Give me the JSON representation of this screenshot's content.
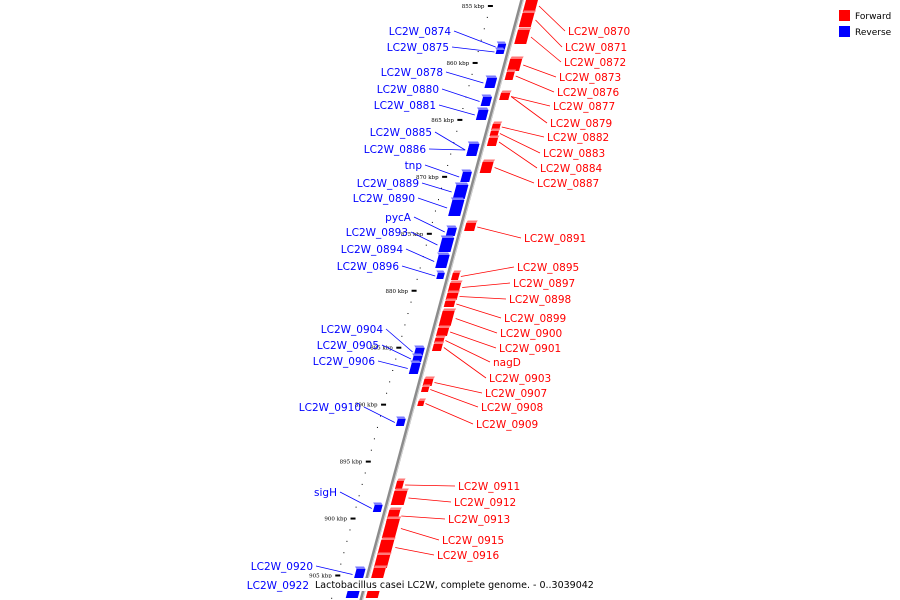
{
  "caption": "Lactobacillus casei LC2W, complete genome. - 0..3039042",
  "legend": [
    {
      "label": "Forward",
      "color": "#ff0000"
    },
    {
      "label": "Reverse",
      "color": "#0000ff"
    }
  ],
  "colors": {
    "forward": "#ff0000",
    "reverse": "#0000ff",
    "backbone": "#8c8c8c"
  },
  "ticks": [
    "855 kbp",
    "860 kbp",
    "865 kbp",
    "870 kbp",
    "875 kbp",
    "880 kbp",
    "885 kbp",
    "890 kbp",
    "895 kbp",
    "900 kbp",
    "905 kbp"
  ],
  "reverse_genes": [
    "LC2W_0874",
    "LC2W_0875",
    "LC2W_0878",
    "LC2W_0880",
    "LC2W_0881",
    "LC2W_0885",
    "LC2W_0886",
    "tnp",
    "LC2W_0889",
    "LC2W_0890",
    "pycA",
    "LC2W_0893",
    "LC2W_0894",
    "LC2W_0896",
    "LC2W_0904",
    "LC2W_0905",
    "LC2W_0906",
    "LC2W_0910",
    "sigH",
    "LC2W_0920",
    "LC2W_0922"
  ],
  "forward_genes": [
    "LC2W_0870",
    "LC2W_0871",
    "LC2W_0872",
    "LC2W_0873",
    "LC2W_0876",
    "LC2W_0877",
    "LC2W_0879",
    "LC2W_0882",
    "LC2W_0883",
    "LC2W_0884",
    "LC2W_0887",
    "LC2W_0891",
    "LC2W_0895",
    "LC2W_0897",
    "LC2W_0898",
    "LC2W_0899",
    "LC2W_0900",
    "LC2W_0901",
    "nagD",
    "LC2W_0903",
    "LC2W_0907",
    "LC2W_0908",
    "LC2W_0909",
    "LC2W_0911",
    "LC2W_0912",
    "LC2W_0913",
    "LC2W_0915",
    "LC2W_0916"
  ]
}
